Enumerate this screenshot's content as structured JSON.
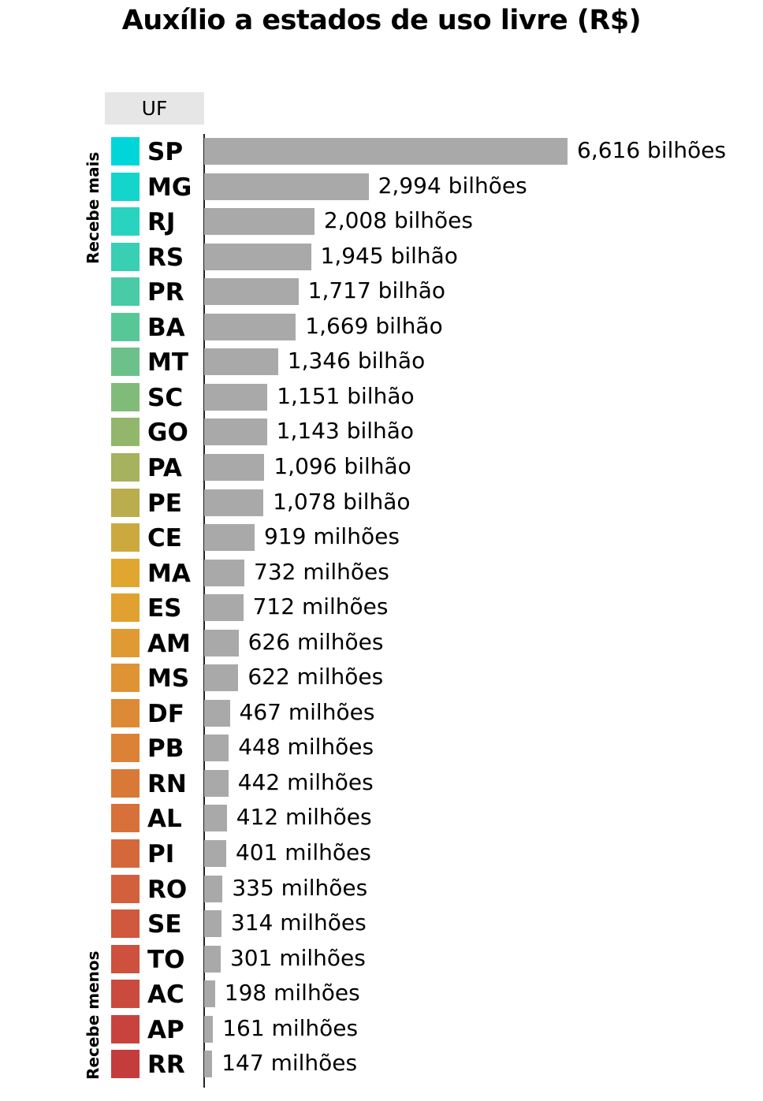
{
  "chart_data": {
    "type": "bar",
    "orientation": "horizontal",
    "title": "Auxílio a estados de uso livre (R$)",
    "category_header": "UF",
    "group_labels": {
      "top": "Recebe mais",
      "bottom": "Recebe menos"
    },
    "bars": [
      {
        "uf": "SP",
        "value": 6616,
        "label": "6,616 bilhões",
        "color": "#00d6d9"
      },
      {
        "uf": "MG",
        "value": 2994,
        "label": "2,994 bilhões",
        "color": "#14d5cc"
      },
      {
        "uf": "RJ",
        "value": 2008,
        "label": "2,008 bilhões",
        "color": "#28d3bf"
      },
      {
        "uf": "RS",
        "value": 1945,
        "label": "1,945 bilhão",
        "color": "#38cfb3"
      },
      {
        "uf": "PR",
        "value": 1717,
        "label": "1,717 bilhão",
        "color": "#48cba6"
      },
      {
        "uf": "BA",
        "value": 1669,
        "label": "1,669 bilhão",
        "color": "#58c797"
      },
      {
        "uf": "MT",
        "value": 1346,
        "label": "1,346 bilhão",
        "color": "#6cc18a"
      },
      {
        "uf": "SC",
        "value": 1151,
        "label": "1,151 bilhão",
        "color": "#80bb7a"
      },
      {
        "uf": "GO",
        "value": 1143,
        "label": "1,143 bilhão",
        "color": "#92b66b"
      },
      {
        "uf": "PA",
        "value": 1096,
        "label": "1,096 bilhão",
        "color": "#a6b25d"
      },
      {
        "uf": "PE",
        "value": 1078,
        "label": "1,078 bilhão",
        "color": "#b9ad4d"
      },
      {
        "uf": "CE",
        "value": 919,
        "label": "919 milhões",
        "color": "#cca93f"
      },
      {
        "uf": "MA",
        "value": 732,
        "label": "732 milhões",
        "color": "#e0a62f"
      },
      {
        "uf": "ES",
        "value": 712,
        "label": "712 milhões",
        "color": "#e1a131"
      },
      {
        "uf": "AM",
        "value": 626,
        "label": "626 milhões",
        "color": "#e09a33"
      },
      {
        "uf": "MS",
        "value": 622,
        "label": "622 milhões",
        "color": "#df9334"
      },
      {
        "uf": "DF",
        "value": 467,
        "label": "467 milhões",
        "color": "#dd8a36"
      },
      {
        "uf": "PB",
        "value": 448,
        "label": "448 milhões",
        "color": "#db8237"
      },
      {
        "uf": "RN",
        "value": 442,
        "label": "442 milhões",
        "color": "#d97938"
      },
      {
        "uf": "AL",
        "value": 412,
        "label": "412 milhões",
        "color": "#d7703a"
      },
      {
        "uf": "PI",
        "value": 401,
        "label": "401 milhões",
        "color": "#d5683b"
      },
      {
        "uf": "RO",
        "value": 335,
        "label": "335 milhões",
        "color": "#d3603c"
      },
      {
        "uf": "SE",
        "value": 314,
        "label": "314 milhões",
        "color": "#d0583d"
      },
      {
        "uf": "TO",
        "value": 301,
        "label": "301 milhões",
        "color": "#cd513d"
      },
      {
        "uf": "AC",
        "value": 198,
        "label": "198 milhões",
        "color": "#ca4a3d"
      },
      {
        "uf": "AP",
        "value": 161,
        "label": "161 milhões",
        "color": "#c8433d"
      },
      {
        "uf": "RR",
        "value": 147,
        "label": "147 milhões",
        "color": "#c53c3d"
      }
    ],
    "bar_color": "#a9a9a9",
    "value_unit": "R$ milhões"
  }
}
